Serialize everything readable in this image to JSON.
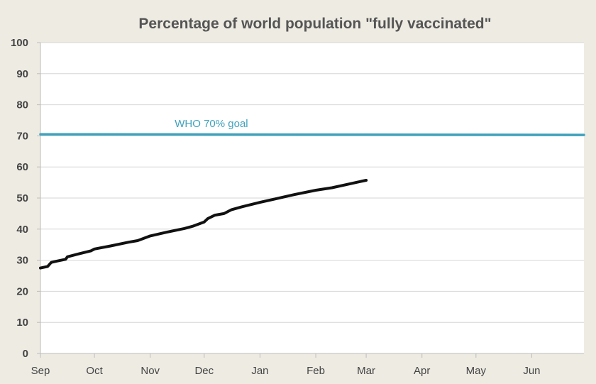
{
  "chart_data": {
    "type": "line",
    "title": "Percentage of world population \"fully vaccinated\"",
    "xlabel": "",
    "ylabel": "",
    "ylim": [
      0,
      100
    ],
    "yticks": [
      "0",
      "10",
      "20",
      "30",
      "40",
      "50",
      "60",
      "70",
      "80",
      "90",
      "100"
    ],
    "xlim": [
      "2021-09-01",
      "2022-06-30"
    ],
    "xticks": [
      {
        "label": "Sep",
        "date": "2021-09-01"
      },
      {
        "label": "Oct",
        "date": "2021-10-01"
      },
      {
        "label": "Nov",
        "date": "2021-11-01"
      },
      {
        "label": "Dec",
        "date": "2021-12-01"
      },
      {
        "label": "Jan",
        "date": "2022-01-01"
      },
      {
        "label": "Feb",
        "date": "2022-02-01"
      },
      {
        "label": "Mar",
        "date": "2022-03-01"
      },
      {
        "label": "Apr",
        "date": "2022-04-01"
      },
      {
        "label": "May",
        "date": "2022-05-01"
      },
      {
        "label": "Jun",
        "date": "2022-06-01"
      }
    ],
    "grid": "horizontal",
    "series": [
      {
        "color": "#111111",
        "points": [
          {
            "date": "2021-09-01",
            "value": 27.5
          },
          {
            "date": "2021-09-05",
            "value": 28.0
          },
          {
            "date": "2021-09-07",
            "value": 29.3
          },
          {
            "date": "2021-09-10",
            "value": 29.7
          },
          {
            "date": "2021-09-15",
            "value": 30.3
          },
          {
            "date": "2021-09-16",
            "value": 31.1
          },
          {
            "date": "2021-09-22",
            "value": 32.0
          },
          {
            "date": "2021-09-29",
            "value": 33.0
          },
          {
            "date": "2021-10-01",
            "value": 33.6
          },
          {
            "date": "2021-10-10",
            "value": 34.6
          },
          {
            "date": "2021-10-20",
            "value": 35.8
          },
          {
            "date": "2021-10-25",
            "value": 36.3
          },
          {
            "date": "2021-11-01",
            "value": 37.8
          },
          {
            "date": "2021-11-10",
            "value": 39.0
          },
          {
            "date": "2021-11-20",
            "value": 40.2
          },
          {
            "date": "2021-11-25",
            "value": 41.0
          },
          {
            "date": "2021-12-01",
            "value": 42.3
          },
          {
            "date": "2021-12-03",
            "value": 43.4
          },
          {
            "date": "2021-12-07",
            "value": 44.5
          },
          {
            "date": "2021-12-12",
            "value": 45.0
          },
          {
            "date": "2021-12-16",
            "value": 46.2
          },
          {
            "date": "2021-12-22",
            "value": 47.2
          },
          {
            "date": "2022-01-01",
            "value": 48.6
          },
          {
            "date": "2022-01-10",
            "value": 49.8
          },
          {
            "date": "2022-01-20",
            "value": 51.1
          },
          {
            "date": "2022-02-01",
            "value": 52.5
          },
          {
            "date": "2022-02-10",
            "value": 53.3
          },
          {
            "date": "2022-02-20",
            "value": 54.6
          },
          {
            "date": "2022-02-28",
            "value": 55.6
          },
          {
            "date": "2022-03-01",
            "value": 55.7
          }
        ]
      },
      {
        "color": "#3fa2bd",
        "points": [
          {
            "date": "2021-09-01",
            "value": 70.5
          },
          {
            "date": "2022-06-30",
            "value": 70.3
          }
        ]
      }
    ],
    "annotations": [
      {
        "text": "WHO 70% goal",
        "date": "2021-12-05",
        "value": 74,
        "color": "#3fa2bd"
      }
    ]
  }
}
